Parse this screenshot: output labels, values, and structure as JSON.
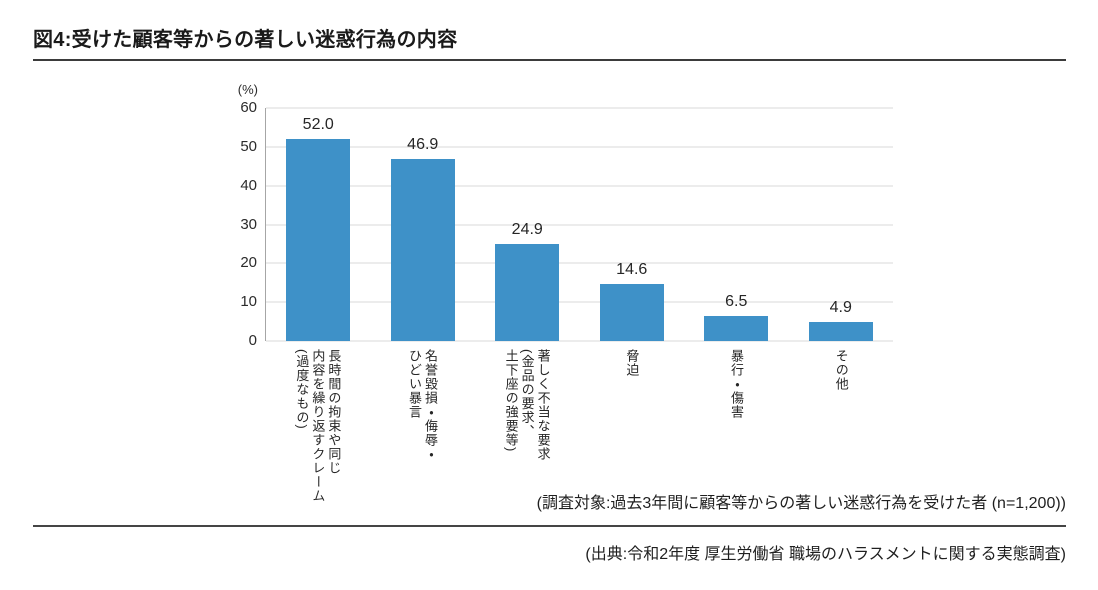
{
  "chart_data": {
    "type": "bar",
    "title": "図4:受けた顧客等からの著しい迷惑行為の内容",
    "unit_label": "(%)",
    "categories": [
      "長時間の拘束や同じ内容を繰り返すクレーム(過度なもの)",
      "名誉毀損・侮辱・ひどい暴言",
      "著しく不当な要求(金品の要求、土下座の強要等)",
      "脅迫",
      "暴行・傷害",
      "その他"
    ],
    "category_lines": [
      [
        "長時間の拘束や同じ",
        "内容を繰り返すクレーム",
        "(過度なもの)"
      ],
      [
        "名誉毀損・侮辱・",
        "ひどい暴言"
      ],
      [
        "著しく不当な要求",
        "(金品の要求、",
        "土下座の強要等)"
      ],
      [
        "脅迫"
      ],
      [
        "暴行・傷害"
      ],
      [
        "その他"
      ]
    ],
    "values": [
      52.0,
      46.9,
      24.9,
      14.6,
      6.5,
      4.9
    ],
    "value_labels": [
      "52.0",
      "46.9",
      "24.9",
      "14.6",
      "6.5",
      "4.9"
    ],
    "yticks": [
      0,
      10,
      20,
      30,
      40,
      50,
      60
    ],
    "ylim": [
      0,
      60
    ],
    "grid": true,
    "legend": "none",
    "category_text_direction": "vertical-rl",
    "bar_color": "#3e91c8",
    "gridline_color": "#d9d9d9",
    "survey_note": "(調査対象:過去3年間に顧客等からの著しい迷惑行為を受けた者 (n=1,200))",
    "source_note": "(出典:令和2年度 厚生労働省 職場のハラスメントに関する実態調査)"
  }
}
